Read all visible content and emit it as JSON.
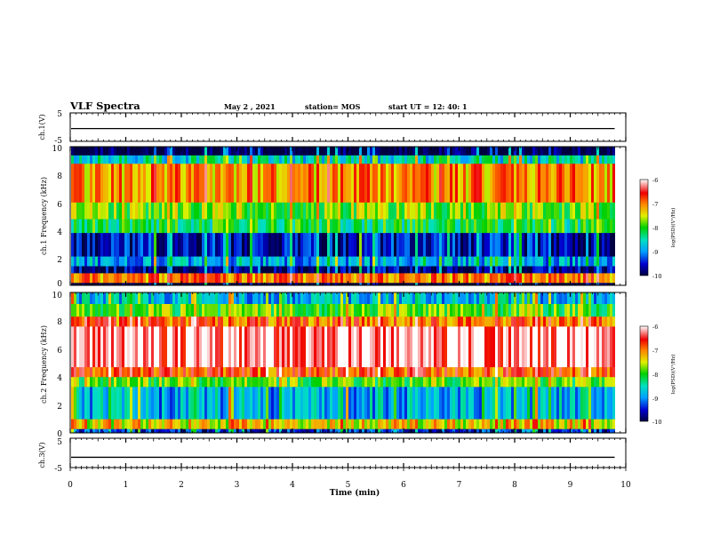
{
  "header": {
    "title": "VLF Spectra",
    "date": "May 2 , 2021",
    "station": "station= MOS",
    "start_ut": "start UT = 12: 40: 1"
  },
  "chart_data": [
    {
      "type": "line",
      "panel": "ch1-voltage",
      "ylabel": "ch.1(V)",
      "yticks": [
        "5",
        "-5"
      ],
      "ylim": [
        -5,
        5
      ],
      "x": [
        0,
        9.8
      ],
      "values": [
        -0.5,
        -0.5
      ]
    },
    {
      "type": "heatmap",
      "panel": "ch1-spectrogram",
      "ylabel": "ch.1 Frequency (kHz)",
      "yticks": [
        "0",
        "2",
        "4",
        "6",
        "8",
        "10"
      ],
      "ylim": [
        0,
        10
      ],
      "xlim": [
        0,
        9.8
      ],
      "colorbar": {
        "label": "log(PSD)(V²/Hz)",
        "ticks": [
          "-6",
          "-7",
          "-8",
          "-9",
          "-10"
        ],
        "range": [
          -10,
          -6
        ]
      },
      "bands": [
        {
          "from": 0.0,
          "to": 0.2,
          "level": -10.2
        },
        {
          "from": 0.2,
          "to": 0.9,
          "level": -7.0
        },
        {
          "from": 0.9,
          "to": 1.4,
          "level": -9.8
        },
        {
          "from": 1.4,
          "to": 2.1,
          "level": -8.9
        },
        {
          "from": 2.1,
          "to": 3.8,
          "level": -9.6
        },
        {
          "from": 3.8,
          "to": 4.8,
          "level": -8.2
        },
        {
          "from": 4.8,
          "to": 6.0,
          "level": -7.8
        },
        {
          "from": 6.0,
          "to": 8.8,
          "level": -7.1
        },
        {
          "from": 8.8,
          "to": 9.4,
          "level": -8.6
        },
        {
          "from": 9.4,
          "to": 10.0,
          "level": -10.1
        }
      ]
    },
    {
      "type": "heatmap",
      "panel": "ch2-spectrogram",
      "ylabel": "ch.2 Frequency (kHz)",
      "yticks": [
        "0",
        "2",
        "4",
        "6",
        "8",
        "10"
      ],
      "ylim": [
        0,
        10
      ],
      "xlim": [
        0,
        9.8
      ],
      "colorbar": {
        "label": "log(PSD)(V²/Hz)",
        "ticks": [
          "-6",
          "-7",
          "-8",
          "-9",
          "-10"
        ],
        "range": [
          -10,
          -6
        ]
      },
      "bands": [
        {
          "from": 0.0,
          "to": 0.3,
          "level": -9.5
        },
        {
          "from": 0.3,
          "to": 1.0,
          "level": -7.4
        },
        {
          "from": 1.0,
          "to": 3.3,
          "level": -8.9
        },
        {
          "from": 3.3,
          "to": 4.0,
          "level": -7.9
        },
        {
          "from": 4.0,
          "to": 4.7,
          "level": -6.8
        },
        {
          "from": 4.7,
          "to": 7.6,
          "level": -6.2
        },
        {
          "from": 7.6,
          "to": 8.3,
          "level": -6.9
        },
        {
          "from": 8.3,
          "to": 9.2,
          "level": -7.9
        },
        {
          "from": 9.2,
          "to": 10.0,
          "level": -8.8
        }
      ]
    },
    {
      "type": "line",
      "panel": "ch3-voltage",
      "ylabel": "ch.3(V)",
      "yticks": [
        "5",
        "-5"
      ],
      "ylim": [
        -5,
        5
      ],
      "x": [
        0,
        9.8
      ],
      "values": [
        -1.5,
        -1.5
      ]
    }
  ],
  "xaxis": {
    "label": "Time (min)",
    "ticks": [
      "0",
      "1",
      "2",
      "3",
      "4",
      "5",
      "6",
      "7",
      "8",
      "9",
      "10"
    ],
    "xlim": [
      0,
      10
    ]
  }
}
